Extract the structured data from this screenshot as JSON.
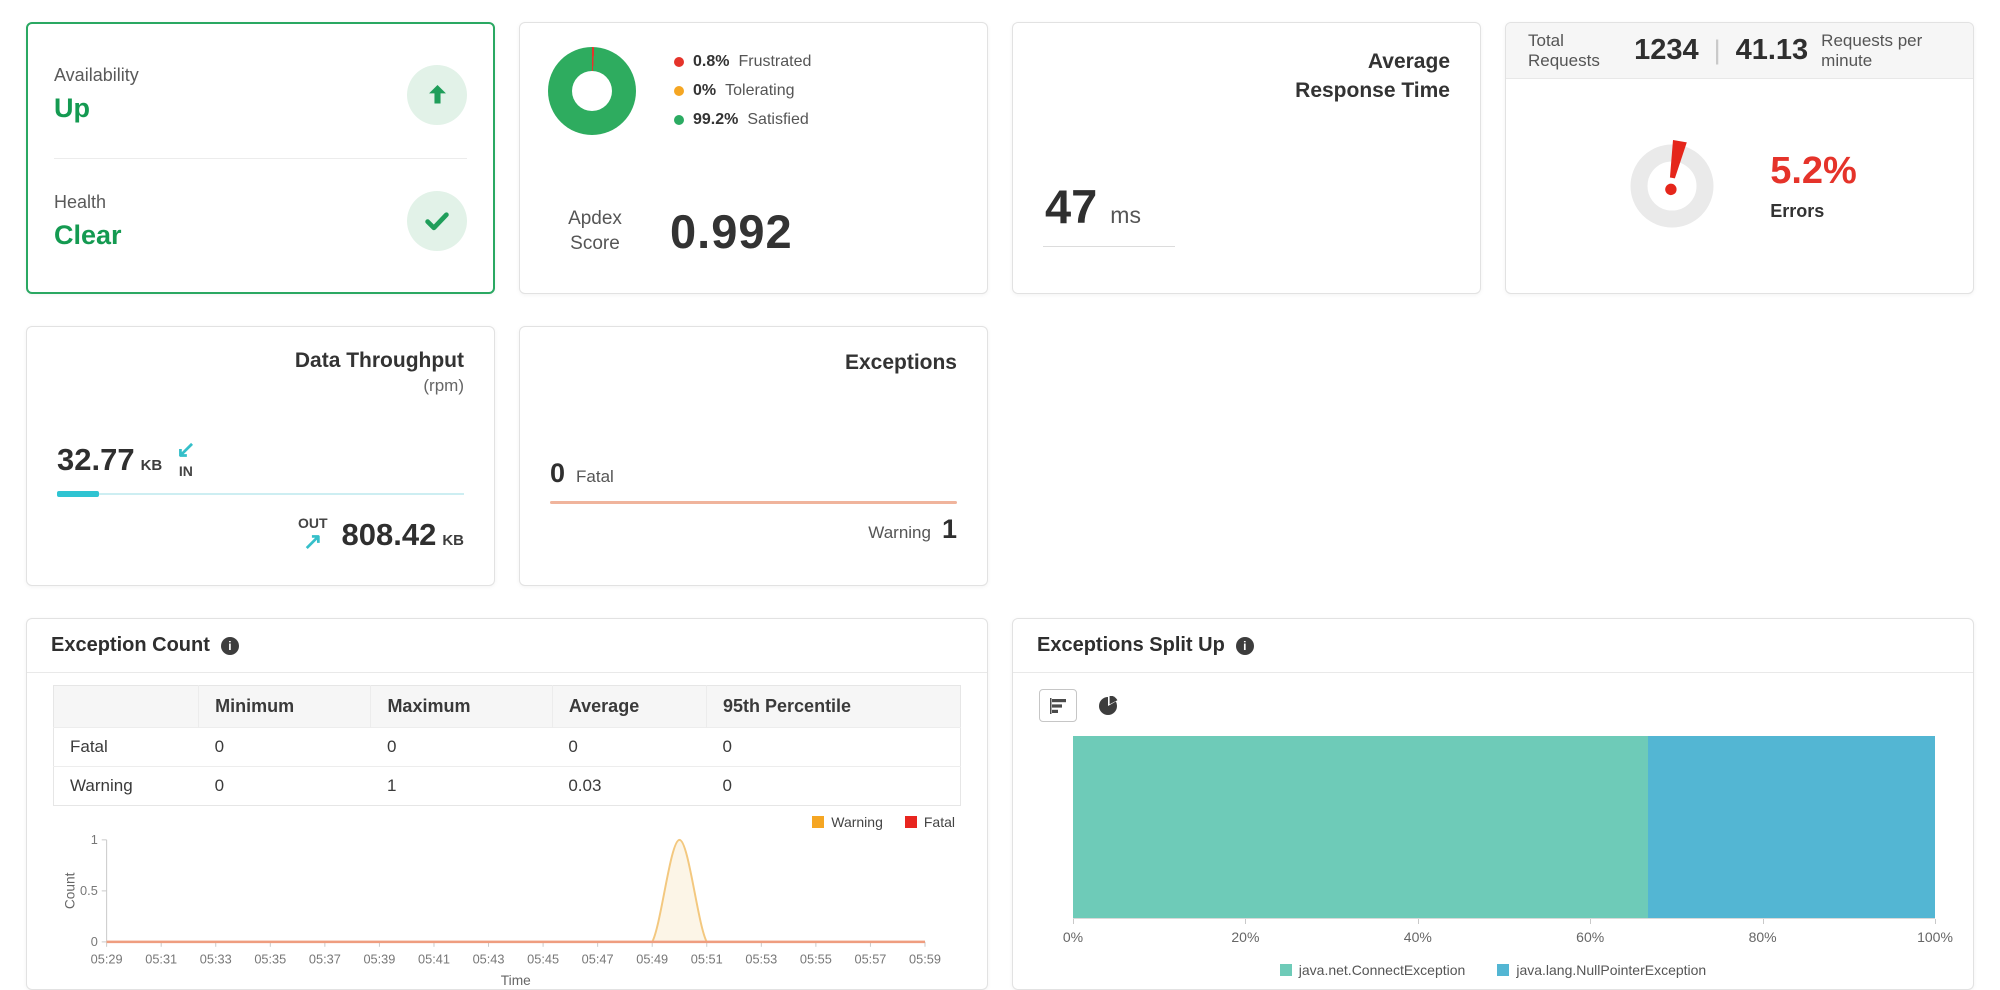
{
  "colors": {
    "green": "#149a51",
    "green_icon": "#1f9e5a",
    "green_border": "#2aa862",
    "red": "#e5261b",
    "orange": "#f5a623",
    "teal": "#35bfc9",
    "salmon": "#f0b49c",
    "bar_teal": "#6ecbb8",
    "bar_blue": "#53b6d3"
  },
  "availability_card": {
    "availability_label": "Availability",
    "availability_value": "Up",
    "health_label": "Health",
    "health_value": "Clear"
  },
  "apdex_card": {
    "legend": [
      {
        "pct": "0.8%",
        "label": "Frustrated",
        "color": "#e5332a"
      },
      {
        "pct": "0%",
        "label": "Tolerating",
        "color": "#f5a623"
      },
      {
        "pct": "99.2%",
        "label": "Satisfied",
        "color": "#2bab62"
      }
    ],
    "donut_segments": [
      {
        "pct": 0.8,
        "color": "#e5332a"
      },
      {
        "pct": 99.2,
        "color": "#2eac5f"
      }
    ],
    "score_label": "Apdex Score",
    "score_value": "0.992"
  },
  "response_card": {
    "title": "Average Response Time",
    "value": "47",
    "unit": "ms"
  },
  "requests_card": {
    "total_label": "Total Requests",
    "total_value": "1234",
    "separator": "|",
    "rate_value": "41.13",
    "rate_label": "Requests per minute",
    "error_pct": "5.2%",
    "error_value_num": 5.2,
    "error_label": "Errors"
  },
  "throughput_card": {
    "title": "Data Throughput",
    "subtitle": "(rpm)",
    "in_value": "32.77",
    "in_unit": "KB",
    "in_arrow": "↙",
    "in_label": "IN",
    "out_label": "OUT",
    "out_arrow": "↗",
    "out_value": "808.42",
    "out_unit": "KB"
  },
  "exceptions_card": {
    "title": "Exceptions",
    "fatal_value": "0",
    "fatal_label": "Fatal",
    "warning_label": "Warning",
    "warning_value": "1"
  },
  "exception_count": {
    "title": "Exception Count",
    "table_headers": [
      "",
      "Minimum",
      "Maximum",
      "Average",
      "95th Percentile"
    ],
    "table_rows": [
      {
        "label": "Fatal",
        "values": [
          "0",
          "0",
          "0",
          "0"
        ]
      },
      {
        "label": "Warning",
        "values": [
          "0",
          "1",
          "0.03",
          "0"
        ]
      }
    ]
  },
  "exceptions_split": {
    "title": "Exceptions Split Up"
  },
  "chart_data": [
    {
      "type": "line",
      "title": "Exception Count",
      "xlabel": "Time",
      "ylabel": "Count",
      "ylim": [
        0,
        1
      ],
      "yticks": [
        0,
        0.5,
        1
      ],
      "grid": false,
      "legend_position": "top-right",
      "x": [
        "05:29",
        "05:30",
        "05:31",
        "05:32",
        "05:33",
        "05:34",
        "05:35",
        "05:36",
        "05:37",
        "05:38",
        "05:39",
        "05:40",
        "05:41",
        "05:42",
        "05:43",
        "05:44",
        "05:45",
        "05:46",
        "05:47",
        "05:48",
        "05:49",
        "05:50",
        "05:51",
        "05:52",
        "05:53",
        "05:54",
        "05:55",
        "05:56",
        "05:57",
        "05:58",
        "05:59"
      ],
      "xticks": [
        "05:29",
        "05:31",
        "05:33",
        "05:35",
        "05:37",
        "05:39",
        "05:41",
        "05:43",
        "05:45",
        "05:47",
        "05:49",
        "05:51",
        "05:53",
        "05:55",
        "05:57",
        "05:59"
      ],
      "series": [
        {
          "name": "Warning",
          "legend_color": "#f5a623",
          "line_color": "#f3c87f",
          "fill_color": "#fbf1dd",
          "values": [
            0,
            0,
            0,
            0,
            0,
            0,
            0,
            0,
            0,
            0,
            0,
            0,
            0,
            0,
            0,
            0,
            0,
            0,
            0,
            0,
            0,
            1,
            0,
            0,
            0,
            0,
            0,
            0,
            0,
            0,
            0
          ]
        },
        {
          "name": "Fatal",
          "legend_color": "#e8251f",
          "line_color": "#ef9d7f",
          "values": [
            0,
            0,
            0,
            0,
            0,
            0,
            0,
            0,
            0,
            0,
            0,
            0,
            0,
            0,
            0,
            0,
            0,
            0,
            0,
            0,
            0,
            0,
            0,
            0,
            0,
            0,
            0,
            0,
            0,
            0,
            0
          ]
        }
      ]
    },
    {
      "type": "bar",
      "orientation": "horizontal-stacked",
      "title": "Exceptions Split Up",
      "xlim": [
        0,
        100
      ],
      "xticks": [
        "0%",
        "20%",
        "40%",
        "60%",
        "80%",
        "100%"
      ],
      "segments": [
        {
          "name": "java.net.ConnectException",
          "value": 66.7,
          "color": "#6ecbb8"
        },
        {
          "name": "java.lang.NullPointerException",
          "value": 33.3,
          "color": "#53b6d3"
        }
      ]
    }
  ]
}
